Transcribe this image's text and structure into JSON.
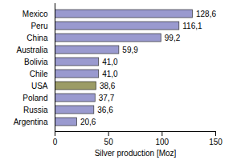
{
  "chart_data": {
    "type": "bar",
    "orientation": "horizontal",
    "categories": [
      "Mexico",
      "Peru",
      "China",
      "Australia",
      "Bolivia",
      "Chile",
      "USA",
      "Poland",
      "Russia",
      "Argentina"
    ],
    "values": [
      128.6,
      116.1,
      99.2,
      59.9,
      41.0,
      41.0,
      38.6,
      37.7,
      36.6,
      20.6
    ],
    "value_labels": [
      "128,6",
      "116,1",
      "99,2",
      "59,9",
      "41,0",
      "41,0",
      "38,6",
      "37,7",
      "36,6",
      "20,6"
    ],
    "data_labels": true,
    "colors": [
      "#9a9acf",
      "#9a9acf",
      "#9a9acf",
      "#9a9acf",
      "#9a9acf",
      "#9a9acf",
      "#9c9c66",
      "#9a9acf",
      "#9a9acf",
      "#9a9acf"
    ],
    "x_label": "Silver production [Moz]",
    "xlim": [
      0,
      150
    ],
    "xticks": [
      0,
      50,
      100,
      150
    ],
    "grid": false
  }
}
